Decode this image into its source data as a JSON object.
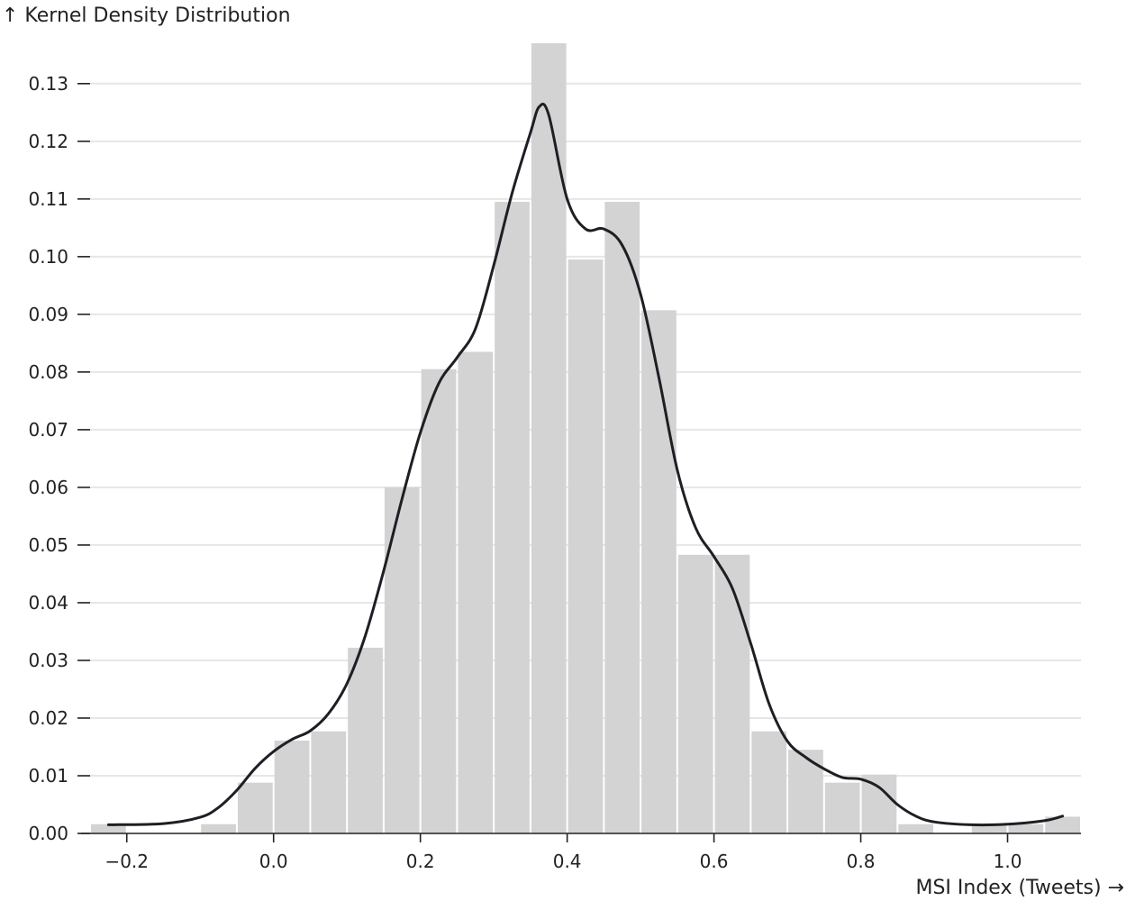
{
  "chart_data": {
    "type": "bar",
    "ylabel": "↑ Kernel Density Distribution",
    "xlabel": "MSI Index (Tweets) →",
    "xlim": [
      -0.25,
      1.1
    ],
    "ylim": [
      0,
      0.137
    ],
    "x_ticks": [
      -0.2,
      0.0,
      0.2,
      0.4,
      0.6,
      0.8,
      1.0
    ],
    "x_tick_labels": [
      "−0.2",
      "0.0",
      "0.2",
      "0.4",
      "0.6",
      "0.8",
      "1.0"
    ],
    "y_ticks": [
      0.0,
      0.01,
      0.02,
      0.03,
      0.04,
      0.05,
      0.06,
      0.07,
      0.08,
      0.09,
      0.1,
      0.11,
      0.12,
      0.13
    ],
    "y_tick_labels": [
      "0.00",
      "0.01",
      "0.02",
      "0.03",
      "0.04",
      "0.05",
      "0.06",
      "0.07",
      "0.08",
      "0.09",
      "0.10",
      "0.11",
      "0.12",
      "0.13"
    ],
    "grid": "horizontal",
    "histogram": {
      "bin_width": 0.05,
      "bins": [
        {
          "x0": -0.25,
          "x1": -0.2,
          "value": 0.0016
        },
        {
          "x0": -0.1,
          "x1": -0.05,
          "value": 0.0016
        },
        {
          "x0": -0.05,
          "x1": 0.0,
          "value": 0.0088
        },
        {
          "x0": 0.0,
          "x1": 0.05,
          "value": 0.0161
        },
        {
          "x0": 0.05,
          "x1": 0.1,
          "value": 0.0177
        },
        {
          "x0": 0.1,
          "x1": 0.15,
          "value": 0.0322
        },
        {
          "x0": 0.15,
          "x1": 0.2,
          "value": 0.06
        },
        {
          "x0": 0.2,
          "x1": 0.25,
          "value": 0.0805
        },
        {
          "x0": 0.25,
          "x1": 0.3,
          "value": 0.0835
        },
        {
          "x0": 0.3,
          "x1": 0.35,
          "value": 0.1095
        },
        {
          "x0": 0.35,
          "x1": 0.4,
          "value": 0.137
        },
        {
          "x0": 0.4,
          "x1": 0.45,
          "value": 0.0995
        },
        {
          "x0": 0.45,
          "x1": 0.5,
          "value": 0.1095
        },
        {
          "x0": 0.5,
          "x1": 0.55,
          "value": 0.0907
        },
        {
          "x0": 0.55,
          "x1": 0.6,
          "value": 0.0483
        },
        {
          "x0": 0.6,
          "x1": 0.65,
          "value": 0.0483
        },
        {
          "x0": 0.65,
          "x1": 0.7,
          "value": 0.0177
        },
        {
          "x0": 0.7,
          "x1": 0.75,
          "value": 0.0145
        },
        {
          "x0": 0.75,
          "x1": 0.8,
          "value": 0.0088
        },
        {
          "x0": 0.8,
          "x1": 0.85,
          "value": 0.0102
        },
        {
          "x0": 0.85,
          "x1": 0.9,
          "value": 0.0016
        },
        {
          "x0": 0.95,
          "x1": 1.0,
          "value": 0.0016
        },
        {
          "x0": 1.0,
          "x1": 1.05,
          "value": 0.0016
        },
        {
          "x0": 1.05,
          "x1": 1.1,
          "value": 0.0029
        }
      ]
    },
    "density_curve": {
      "x": [
        -0.225,
        -0.15,
        -0.1,
        -0.075,
        -0.05,
        -0.025,
        0.0,
        0.025,
        0.05,
        0.075,
        0.1,
        0.125,
        0.15,
        0.175,
        0.2,
        0.225,
        0.25,
        0.275,
        0.3,
        0.325,
        0.35,
        0.362,
        0.375,
        0.4,
        0.425,
        0.45,
        0.475,
        0.5,
        0.525,
        0.55,
        0.575,
        0.6,
        0.625,
        0.65,
        0.675,
        0.7,
        0.725,
        0.75,
        0.775,
        0.8,
        0.825,
        0.85,
        0.875,
        0.9,
        0.95,
        1.0,
        1.05,
        1.075
      ],
      "y": [
        0.0015,
        0.0017,
        0.0028,
        0.0045,
        0.0075,
        0.0113,
        0.0142,
        0.0163,
        0.0178,
        0.0208,
        0.026,
        0.0343,
        0.0455,
        0.058,
        0.0695,
        0.078,
        0.0825,
        0.0875,
        0.0985,
        0.111,
        0.1215,
        0.126,
        0.1245,
        0.11,
        0.1048,
        0.1048,
        0.102,
        0.0935,
        0.079,
        0.063,
        0.053,
        0.048,
        0.0425,
        0.033,
        0.0225,
        0.016,
        0.0132,
        0.0112,
        0.0097,
        0.0094,
        0.008,
        0.005,
        0.003,
        0.002,
        0.0015,
        0.0016,
        0.0022,
        0.003
      ]
    }
  }
}
